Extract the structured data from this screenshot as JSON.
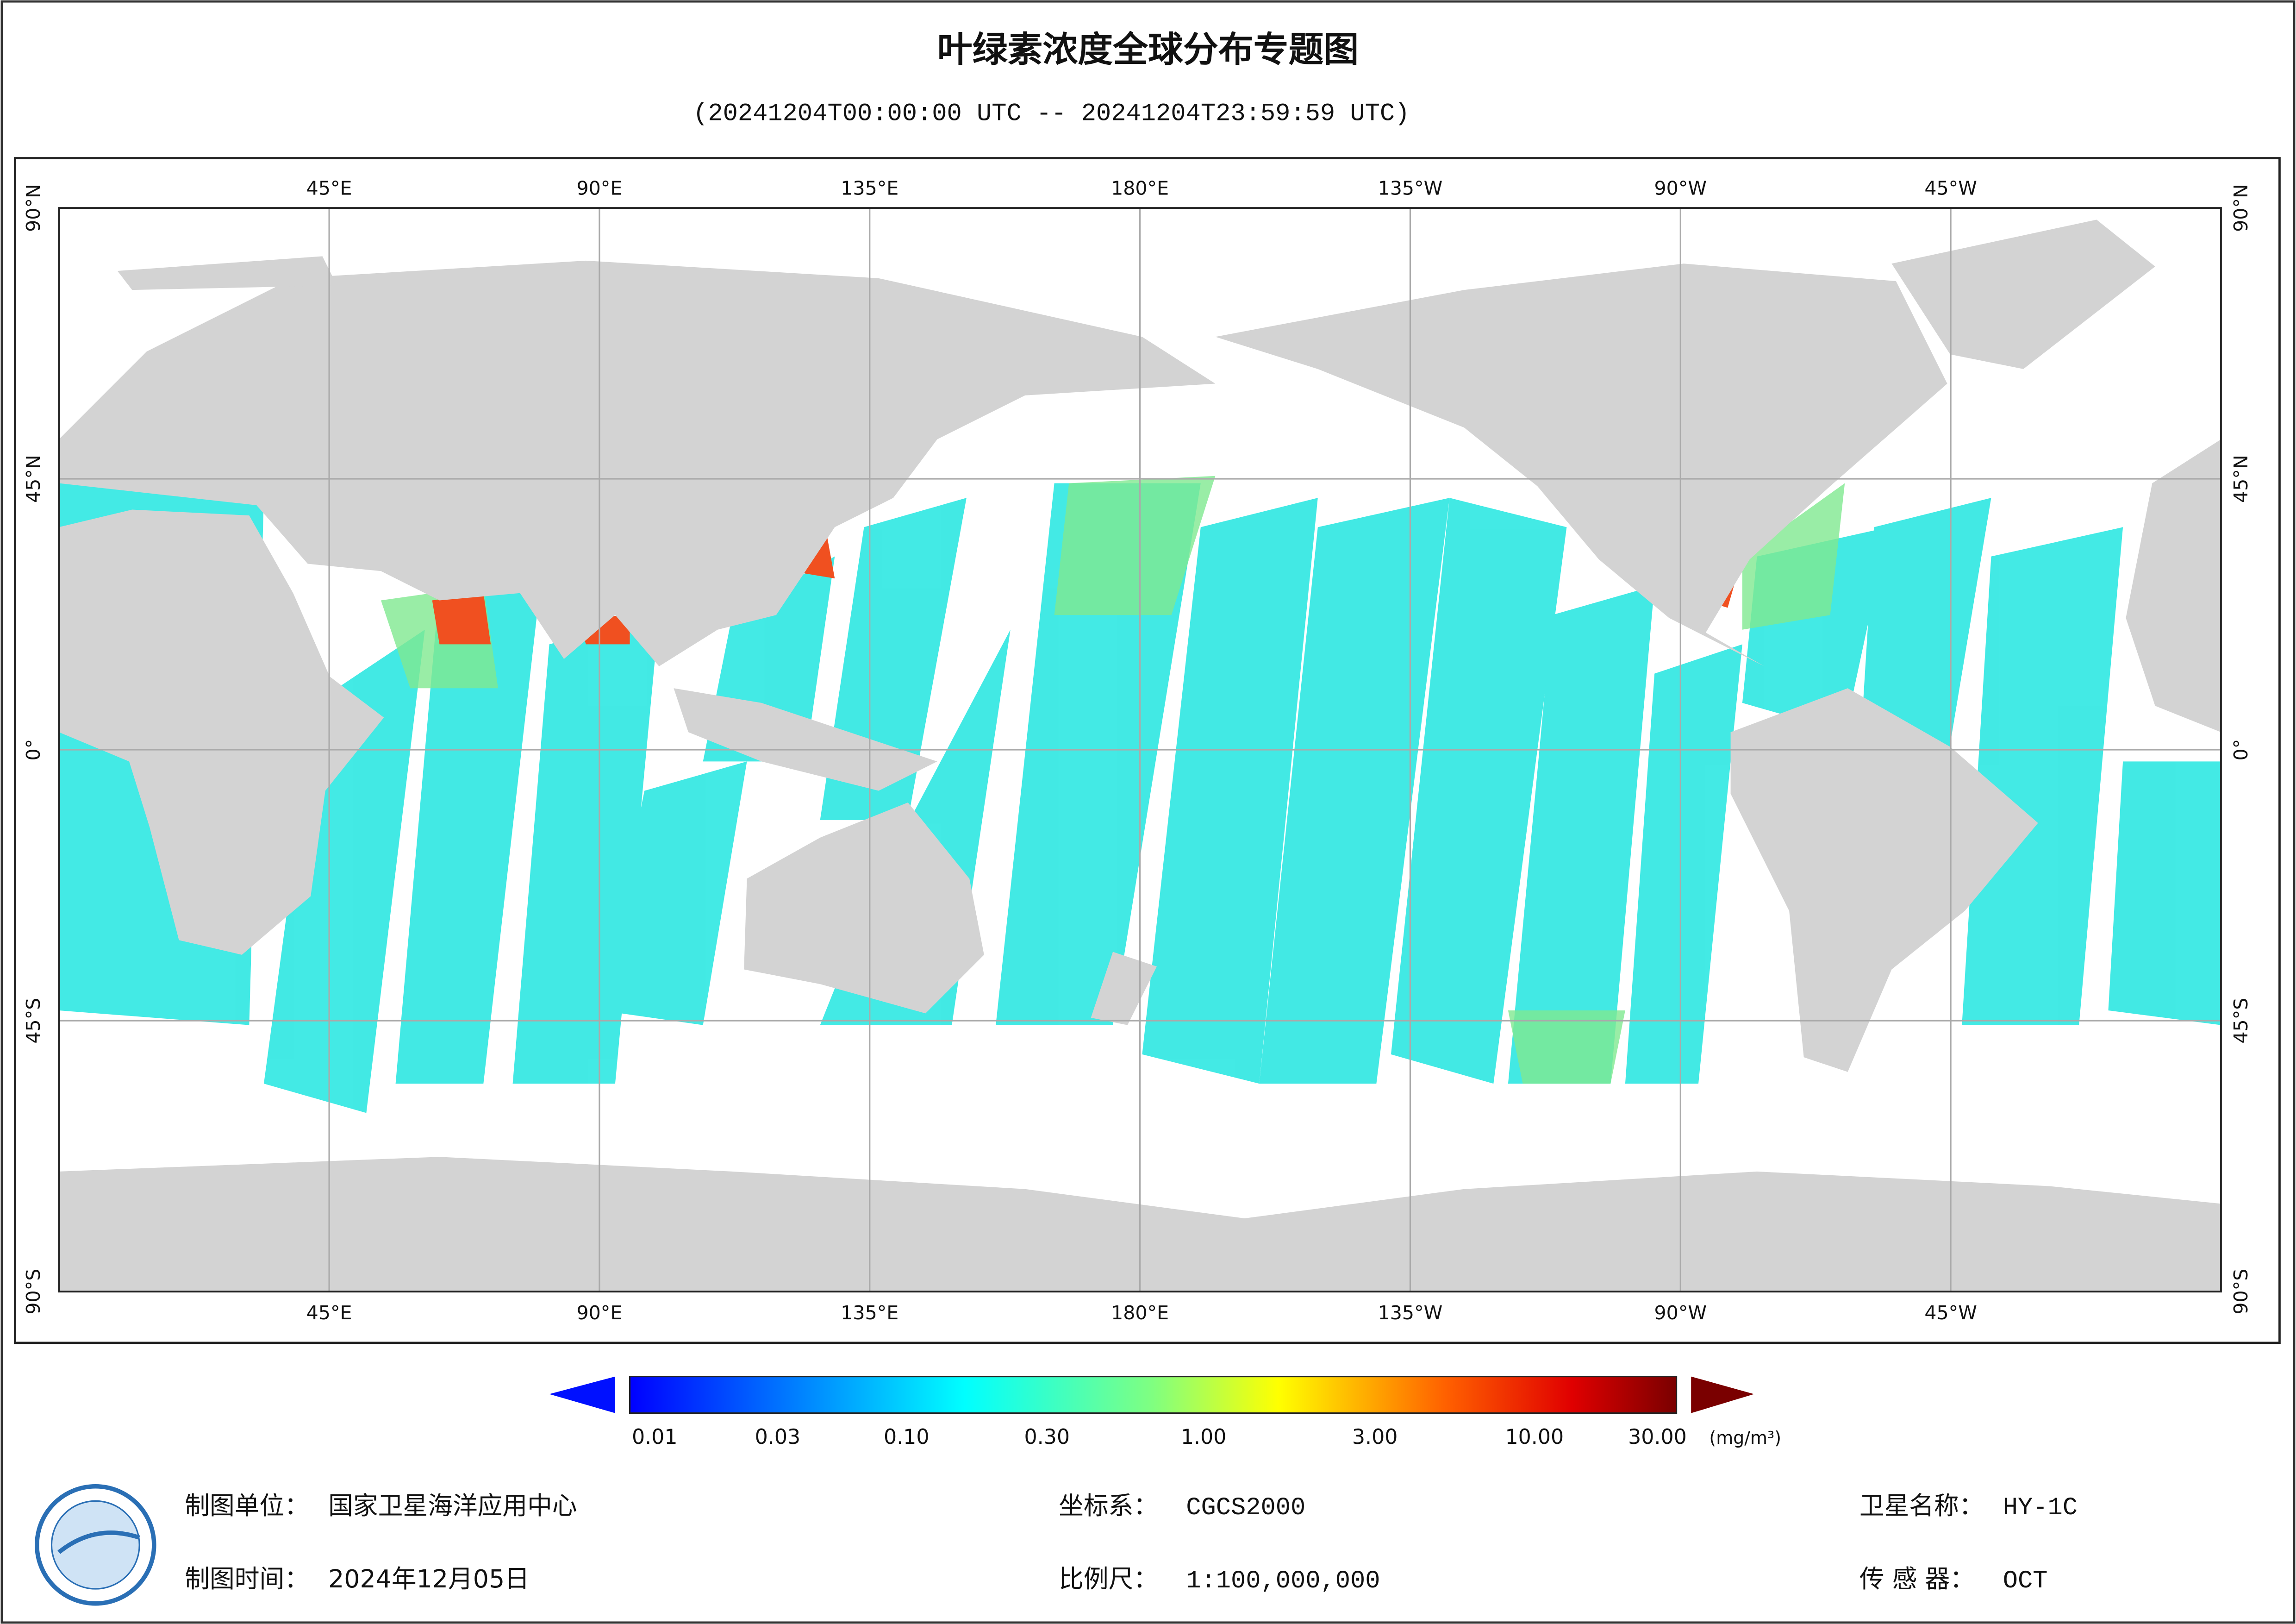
{
  "header": {
    "title": "叶绿素浓度全球分布专题图",
    "subtitle": "(20241204T00:00:00 UTC -- 20241204T23:59:59 UTC)"
  },
  "map": {
    "lon_labels": [
      "45°E",
      "90°E",
      "135°E",
      "180°E",
      "135°W",
      "90°W",
      "45°W"
    ],
    "lat_labels": [
      "90°N",
      "45°N",
      "0°",
      "45°S",
      "90°S"
    ]
  },
  "colorbar": {
    "ticks": [
      "0.01",
      "0.03",
      "0.10",
      "0.30",
      "1.00",
      "3.00",
      "10.00",
      "30.00"
    ],
    "unit": "(mg/m³)"
  },
  "footer": {
    "items": [
      {
        "label": "制图单位：",
        "value": "国家卫星海洋应用中心"
      },
      {
        "label": "制图时间：",
        "value": "2024年12月05日"
      },
      {
        "label": "坐标系：",
        "value": "CGCS2000"
      },
      {
        "label": "比例尺：",
        "value": "1:100,000,000"
      },
      {
        "label": "卫星名称：",
        "value": "HY-1C"
      },
      {
        "label": "传 感 器：",
        "value": "OCT"
      }
    ]
  }
}
